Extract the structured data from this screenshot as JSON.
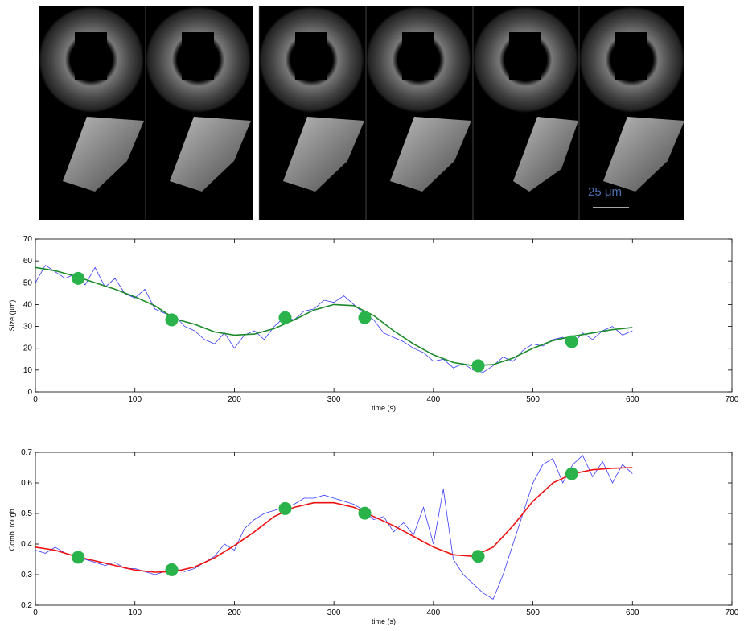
{
  "scale_bar_label": "25 μm",
  "chart_data": [
    {
      "type": "line",
      "ylabel": "Size (μm)",
      "xlabel": "time (s)",
      "xlim": [
        0,
        700
      ],
      "ylim": [
        0,
        70
      ],
      "xticks": [
        0,
        100,
        200,
        300,
        400,
        500,
        600,
        700
      ],
      "yticks": [
        0,
        10,
        20,
        30,
        40,
        50,
        60,
        70
      ],
      "series": [
        {
          "style": "line",
          "color": "#3a3aff",
          "x": [
            0,
            10,
            20,
            30,
            40,
            50,
            60,
            70,
            80,
            90,
            100,
            110,
            120,
            130,
            140,
            150,
            160,
            170,
            180,
            190,
            200,
            210,
            220,
            230,
            240,
            250,
            260,
            270,
            280,
            290,
            300,
            310,
            320,
            330,
            340,
            350,
            360,
            370,
            380,
            390,
            400,
            410,
            420,
            430,
            440,
            450,
            460,
            470,
            480,
            490,
            500,
            510,
            520,
            530,
            540,
            550,
            560,
            570,
            580,
            590,
            600
          ],
          "values": [
            50,
            58,
            55,
            52,
            54,
            49,
            57,
            48,
            52,
            45,
            43,
            47,
            38,
            36,
            35,
            30,
            28,
            24,
            22,
            27,
            20,
            26,
            28,
            24,
            30,
            34,
            33,
            37,
            38,
            42,
            41,
            44,
            40,
            36,
            33,
            27,
            25,
            23,
            20,
            18,
            14,
            15,
            11,
            13,
            10,
            9,
            12,
            16,
            14,
            19,
            22,
            21,
            24,
            25,
            22,
            27,
            24,
            28,
            30,
            26,
            28
          ]
        },
        {
          "style": "line",
          "color": "#1a8a2a",
          "x": [
            0,
            20,
            40,
            60,
            80,
            100,
            120,
            140,
            160,
            180,
            200,
            220,
            240,
            260,
            280,
            300,
            320,
            340,
            360,
            380,
            400,
            420,
            440,
            460,
            480,
            500,
            520,
            540,
            560,
            580,
            600
          ],
          "values": [
            57,
            55.5,
            53,
            50,
            47,
            43.5,
            39.5,
            33.5,
            31,
            27.5,
            26,
            26.5,
            29,
            33,
            37.5,
            40,
            39.5,
            35,
            28,
            22,
            17,
            13.5,
            12,
            12.5,
            15.5,
            20,
            23.5,
            25.5,
            27,
            28.5,
            29.5
          ]
        },
        {
          "style": "scatter",
          "color": "#2ab34a",
          "x": [
            43,
            137,
            251,
            331,
            445,
            539
          ],
          "values": [
            52,
            33,
            34,
            34,
            12,
            23
          ]
        }
      ]
    },
    {
      "type": "line",
      "ylabel": "Comb. rough.",
      "xlabel": "time (s)",
      "xlim": [
        0,
        700
      ],
      "ylim": [
        0.2,
        0.7
      ],
      "xticks": [
        0,
        100,
        200,
        300,
        400,
        500,
        600,
        700
      ],
      "yticks": [
        0.2,
        0.3,
        0.4,
        0.5,
        0.6,
        0.7
      ],
      "series": [
        {
          "style": "line",
          "color": "#3a3aff",
          "x": [
            0,
            10,
            20,
            30,
            40,
            50,
            60,
            70,
            80,
            90,
            100,
            110,
            120,
            130,
            140,
            150,
            160,
            170,
            180,
            190,
            200,
            210,
            220,
            230,
            240,
            250,
            260,
            270,
            280,
            290,
            300,
            310,
            320,
            330,
            340,
            350,
            360,
            370,
            380,
            390,
            400,
            410,
            420,
            430,
            440,
            450,
            460,
            470,
            480,
            490,
            500,
            510,
            520,
            530,
            540,
            550,
            560,
            570,
            580,
            590,
            600
          ],
          "values": [
            0.38,
            0.37,
            0.39,
            0.37,
            0.36,
            0.35,
            0.34,
            0.33,
            0.34,
            0.32,
            0.32,
            0.31,
            0.3,
            0.31,
            0.32,
            0.31,
            0.32,
            0.34,
            0.36,
            0.4,
            0.38,
            0.45,
            0.48,
            0.5,
            0.51,
            0.52,
            0.53,
            0.55,
            0.55,
            0.56,
            0.55,
            0.54,
            0.53,
            0.51,
            0.48,
            0.49,
            0.44,
            0.47,
            0.43,
            0.52,
            0.4,
            0.58,
            0.35,
            0.3,
            0.27,
            0.24,
            0.22,
            0.3,
            0.4,
            0.5,
            0.6,
            0.66,
            0.68,
            0.6,
            0.66,
            0.69,
            0.62,
            0.67,
            0.6,
            0.66,
            0.63
          ]
        },
        {
          "style": "line",
          "color": "#ee1111",
          "x": [
            0,
            20,
            40,
            60,
            80,
            100,
            120,
            140,
            160,
            180,
            200,
            220,
            240,
            260,
            280,
            300,
            320,
            340,
            360,
            380,
            400,
            420,
            440,
            460,
            480,
            500,
            520,
            540,
            560,
            580,
            600
          ],
          "values": [
            0.39,
            0.38,
            0.36,
            0.345,
            0.33,
            0.315,
            0.308,
            0.31,
            0.325,
            0.355,
            0.395,
            0.44,
            0.49,
            0.52,
            0.535,
            0.535,
            0.52,
            0.49,
            0.46,
            0.425,
            0.39,
            0.365,
            0.36,
            0.39,
            0.46,
            0.54,
            0.6,
            0.63,
            0.643,
            0.648,
            0.65
          ]
        },
        {
          "style": "scatter",
          "color": "#2ab34a",
          "x": [
            43,
            137,
            251,
            331,
            445,
            539
          ],
          "values": [
            0.357,
            0.316,
            0.516,
            0.501,
            0.36,
            0.63
          ]
        }
      ]
    }
  ]
}
